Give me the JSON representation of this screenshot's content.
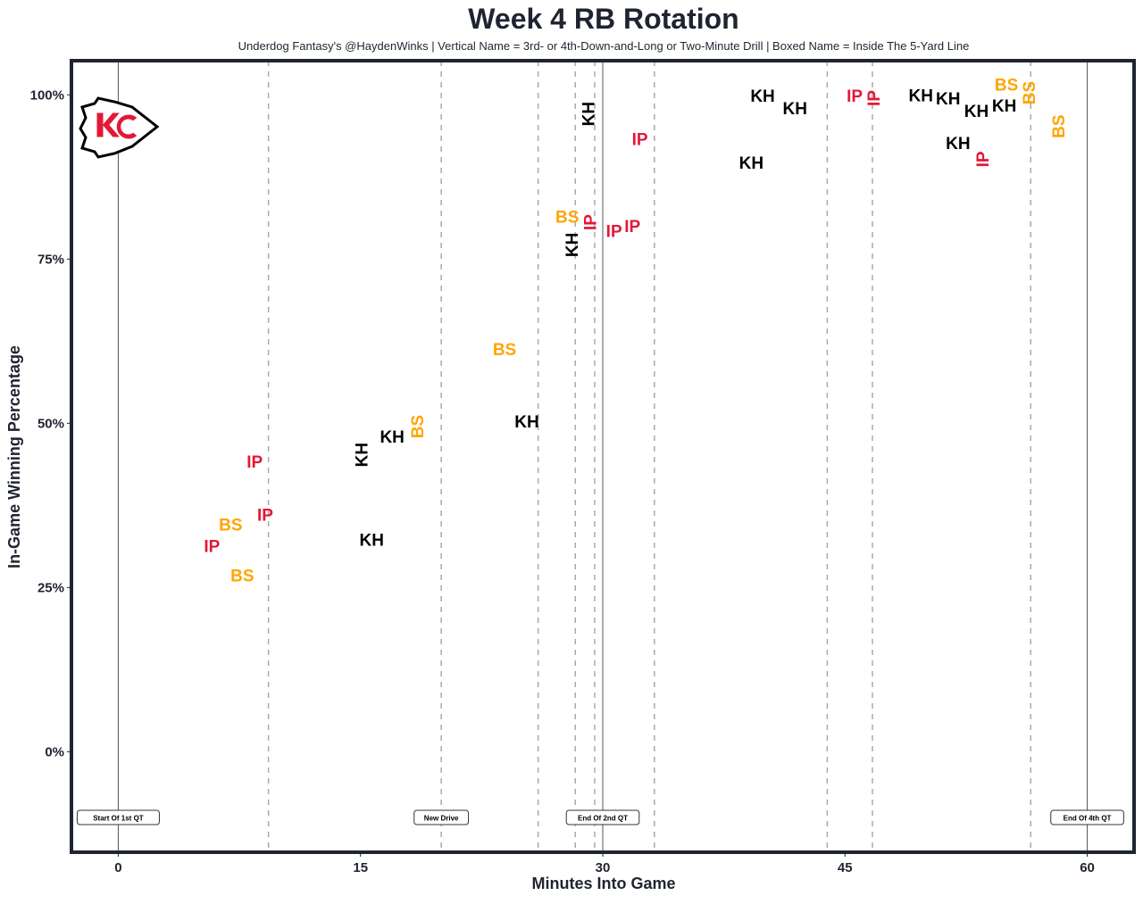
{
  "chart_data": {
    "type": "scatter",
    "title": "Week 4 RB Rotation",
    "subtitle": "Underdog Fantasy's @HaydenWinks | Vertical Name = 3rd- or 4th-Down-and-Long or Two-Minute Drill | Boxed Name = Inside The 5-Yard Line",
    "xlabel": "Minutes Into Game",
    "ylabel": "In-Game Winning Percentage",
    "xlim": [
      -2.9,
      62.9
    ],
    "ylim": [
      -15.3,
      105.2
    ],
    "xticks": [
      {
        "v": 0,
        "label": "0"
      },
      {
        "v": 15,
        "label": "15"
      },
      {
        "v": 30,
        "label": "30"
      },
      {
        "v": 45,
        "label": "45"
      },
      {
        "v": 60,
        "label": "60"
      }
    ],
    "yticks": [
      {
        "v": 0,
        "label": "0%"
      },
      {
        "v": 25,
        "label": "25%"
      },
      {
        "v": 50,
        "label": "50%"
      },
      {
        "v": 75,
        "label": "75%"
      },
      {
        "v": 100,
        "label": "100%"
      }
    ],
    "grid": false,
    "colors": {
      "KH": "#000000",
      "IP": "#e31837",
      "BS": "#ffa500",
      "frame": "#1f2430"
    },
    "logo": "Kansas City Chiefs arrowhead logo",
    "quarter_lines": [
      0,
      30,
      60
    ],
    "drive_lines": [
      9.3,
      20.0,
      26.0,
      28.3,
      29.5,
      33.2,
      43.9,
      46.7,
      56.5
    ],
    "annotations": [
      {
        "x": 0,
        "y": -10,
        "text": "Start Of 1st QT"
      },
      {
        "x": 20,
        "y": -10,
        "text": "New Drive"
      },
      {
        "x": 30,
        "y": -10,
        "text": "End Of 2nd QT"
      },
      {
        "x": 60,
        "y": -10,
        "text": "End Of 4th QT"
      }
    ],
    "points": [
      {
        "x": 8.45,
        "y": 44.2,
        "label": "IP",
        "vertical": false
      },
      {
        "x": 9.1,
        "y": 36.1,
        "label": "IP",
        "vertical": false
      },
      {
        "x": 6.96,
        "y": 34.6,
        "label": "BS",
        "vertical": false
      },
      {
        "x": 5.69,
        "y": 31.9,
        "label": "IP",
        "vertical": false
      },
      {
        "x": 7.68,
        "y": 26.9,
        "label": "BS",
        "vertical": false
      },
      {
        "x": 15.03,
        "y": 45.2,
        "label": "KH",
        "vertical": true
      },
      {
        "x": 16.96,
        "y": 48.0,
        "label": "KH",
        "vertical": false
      },
      {
        "x": 18.29,
        "y": 49.5,
        "label": "BS",
        "vertical": true
      },
      {
        "x": 15.69,
        "y": 32.3,
        "label": "KH",
        "vertical": false
      },
      {
        "x": 23.92,
        "y": 61.3,
        "label": "BS",
        "vertical": false
      },
      {
        "x": 25.3,
        "y": 50.3,
        "label": "KH",
        "vertical": false
      },
      {
        "x": 29.1,
        "y": 97.1,
        "label": "KH",
        "vertical": true
      },
      {
        "x": 32.3,
        "y": 93.3,
        "label": "IP",
        "vertical": false
      },
      {
        "x": 27.8,
        "y": 81.5,
        "label": "BS",
        "vertical": false
      },
      {
        "x": 28.1,
        "y": 80.6,
        "label": "IP",
        "vertical": true
      },
      {
        "x": 28.07,
        "y": 78.8,
        "label": "KH",
        "vertical": true
      },
      {
        "x": 30.7,
        "y": 79.3,
        "label": "IP",
        "vertical": false
      },
      {
        "x": 30.95,
        "y": 80.1,
        "label": "IP",
        "vertical": false
      },
      {
        "x": 39.9,
        "y": 99.9,
        "label": "KH",
        "vertical": false
      },
      {
        "x": 41.9,
        "y": 98.0,
        "label": "KH",
        "vertical": false
      },
      {
        "x": 39.2,
        "y": 89.7,
        "label": "KH",
        "vertical": false
      },
      {
        "x": 45.6,
        "y": 99.9,
        "label": "IP",
        "vertical": false
      },
      {
        "x": 46.3,
        "y": 99.5,
        "label": "IP",
        "vertical": true
      },
      {
        "x": 49.7,
        "y": 100.0,
        "label": "KH",
        "vertical": false
      },
      {
        "x": 50.5,
        "y": 99.5,
        "label": "KH",
        "vertical": false
      },
      {
        "x": 52.7,
        "y": 97.6,
        "label": "KH",
        "vertical": false
      },
      {
        "x": 54.2,
        "y": 98.4,
        "label": "KH",
        "vertical": false
      },
      {
        "x": 52.0,
        "y": 92.7,
        "label": "KH",
        "vertical": false
      },
      {
        "x": 53.5,
        "y": 90.2,
        "label": "IP",
        "vertical": true
      },
      {
        "x": 55.0,
        "y": 100.0,
        "label": "BS",
        "vertical": false
      },
      {
        "x": 55.7,
        "y": 100.3,
        "label": "BS",
        "vertical": true
      },
      {
        "x": 58.2,
        "y": 95.2,
        "label": "BS",
        "vertical": true
      }
    ]
  }
}
